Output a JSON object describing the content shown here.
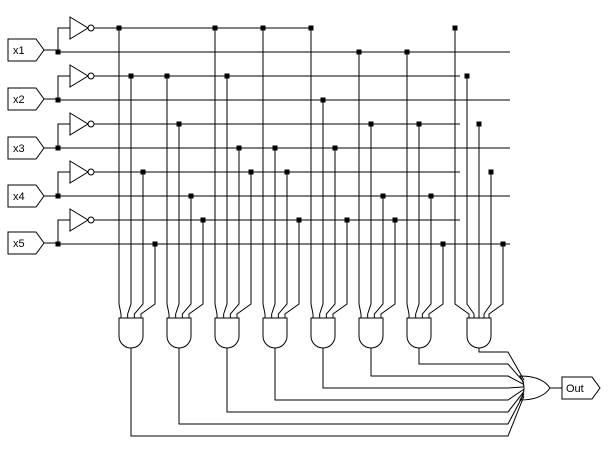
{
  "diagram": {
    "type": "logic-circuit",
    "inputs": [
      "x1",
      "x2",
      "x3",
      "x4",
      "x5"
    ],
    "output": "Out",
    "inverters": 5,
    "and_gates": 8,
    "or_gates": 1
  }
}
